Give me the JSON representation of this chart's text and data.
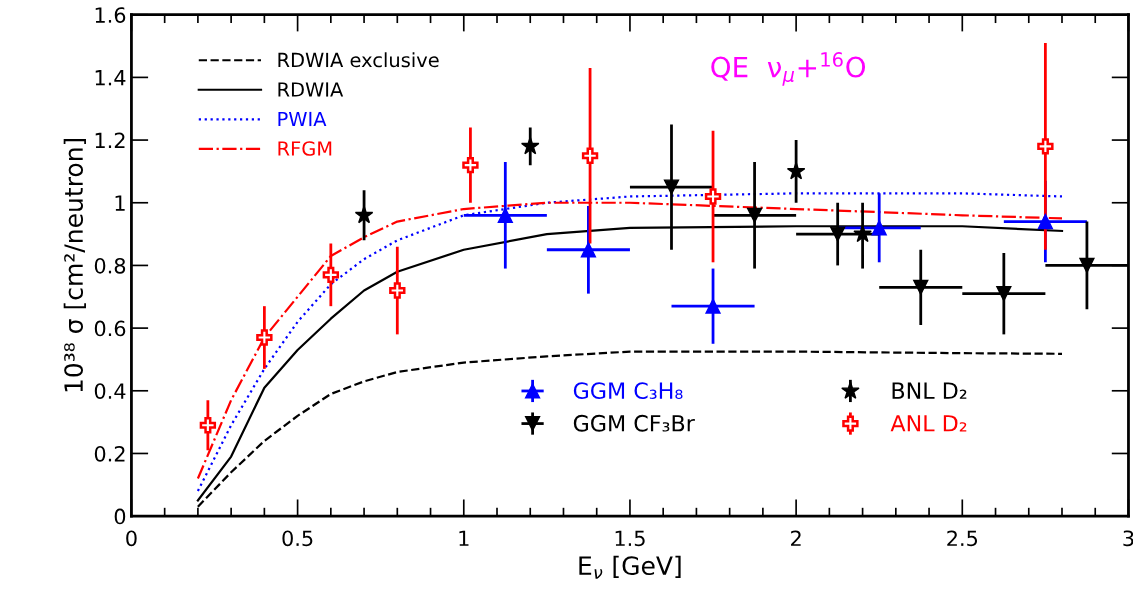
{
  "chart_data": {
    "type": "scatter",
    "xlabel": "E$_{ν}$ [GeV]",
    "ylabel": "10³⁸ σ [cm²/neutron]",
    "annotations": [
      "QE  ν$_{μ}$+$^{16}$O"
    ],
    "xlim": [
      0,
      3
    ],
    "xticks": [
      0,
      0.5,
      1,
      1.5,
      2,
      2.5,
      3
    ],
    "ylim": [
      0,
      1.6
    ],
    "yticks": [
      0,
      0.2,
      0.4,
      0.6,
      0.8,
      1,
      1.2,
      1.4,
      1.6
    ],
    "grid": false,
    "legend": "top left",
    "series": [
      {
        "name": "RDWIA exclusive",
        "type": "line",
        "line_style": "dashed",
        "color": "#000000",
        "x": [
          0.2,
          0.3,
          0.4,
          0.5,
          0.6,
          0.7,
          0.8,
          1.0,
          1.25,
          1.5,
          2.0,
          2.5,
          2.8
        ],
        "values": [
          0.03,
          0.14,
          0.24,
          0.32,
          0.39,
          0.43,
          0.46,
          0.49,
          0.51,
          0.525,
          0.525,
          0.52,
          0.518
        ]
      },
      {
        "name": "RDWIA",
        "type": "line",
        "line_style": "solid",
        "color": "#000000",
        "x": [
          0.2,
          0.3,
          0.4,
          0.5,
          0.6,
          0.7,
          0.8,
          1.0,
          1.25,
          1.5,
          2.0,
          2.5,
          2.8
        ],
        "values": [
          0.05,
          0.19,
          0.41,
          0.53,
          0.63,
          0.72,
          0.78,
          0.85,
          0.9,
          0.92,
          0.925,
          0.925,
          0.91
        ]
      },
      {
        "name": "PWIA",
        "type": "line",
        "line_style": "dotted",
        "color": "#0000ff",
        "x": [
          0.2,
          0.3,
          0.4,
          0.5,
          0.6,
          0.7,
          0.8,
          1.0,
          1.25,
          1.5,
          2.0,
          2.5,
          2.8
        ],
        "values": [
          0.08,
          0.29,
          0.47,
          0.62,
          0.74,
          0.82,
          0.88,
          0.96,
          1.0,
          1.02,
          1.03,
          1.03,
          1.02
        ]
      },
      {
        "name": "RFGM",
        "type": "line",
        "line_style": "dashdot",
        "color": "#ff0000",
        "x": [
          0.2,
          0.3,
          0.4,
          0.5,
          0.6,
          0.7,
          0.8,
          1.0,
          1.25,
          1.5,
          2.0,
          2.5,
          2.8
        ],
        "values": [
          0.12,
          0.37,
          0.57,
          0.7,
          0.83,
          0.89,
          0.94,
          0.98,
          1.0,
          1.0,
          0.98,
          0.96,
          0.95
        ]
      },
      {
        "name": "GGM C₃H₈",
        "marker": "triangle",
        "color": "#0000ff",
        "x": [
          1.125,
          1.375,
          1.75,
          2.25,
          2.75
        ],
        "values": [
          0.96,
          0.85,
          0.67,
          0.92,
          0.94
        ],
        "errors": [
          [
            0.79,
            1.13
          ],
          [
            0.71,
            0.99
          ],
          [
            0.55,
            0.79
          ],
          [
            0.81,
            1.03
          ],
          [
            0.81,
            1.07
          ]
        ],
        "xerrors": [
          [
            1.0,
            1.25
          ],
          [
            1.25,
            1.5
          ],
          [
            1.625,
            1.875
          ],
          [
            2.125,
            2.375
          ],
          [
            2.625,
            2.875
          ]
        ]
      },
      {
        "name": "GGM CF₃Br",
        "marker": "triangle_down",
        "color": "#000000",
        "x": [
          1.625,
          1.875,
          2.125,
          2.375,
          2.625,
          2.875
        ],
        "values": [
          1.05,
          0.96,
          0.9,
          0.73,
          0.71,
          0.8
        ],
        "errors": [
          [
            0.85,
            1.25
          ],
          [
            0.79,
            1.13
          ],
          [
            0.8,
            1.0
          ],
          [
            0.61,
            0.85
          ],
          [
            0.58,
            0.84
          ],
          [
            0.66,
            0.94
          ]
        ],
        "xerrors": [
          [
            1.5,
            1.75
          ],
          [
            1.75,
            2.0
          ],
          [
            2.0,
            2.25
          ],
          [
            2.25,
            2.5
          ],
          [
            2.5,
            2.75
          ],
          [
            2.75,
            3.0
          ]
        ]
      },
      {
        "name": "BNL D₂",
        "marker": "star",
        "color": "#000000",
        "x": [
          0.7,
          1.2,
          2.0,
          2.2
        ],
        "values": [
          0.96,
          1.18,
          1.1,
          0.9
        ],
        "errors": [
          [
            0.88,
            1.04
          ],
          [
            1.12,
            1.24
          ],
          [
            1.0,
            1.2
          ],
          [
            0.79,
            1.0
          ]
        ]
      },
      {
        "name": "ANL D₂",
        "marker": "cross",
        "color": "#ff0000",
        "x": [
          0.23,
          0.4,
          0.6,
          0.8,
          1.02,
          1.38,
          1.75,
          2.75
        ],
        "values": [
          0.29,
          0.57,
          0.77,
          0.72,
          1.12,
          1.15,
          1.02,
          1.18
        ],
        "errors": [
          [
            0.21,
            0.37
          ],
          [
            0.47,
            0.67
          ],
          [
            0.67,
            0.87
          ],
          [
            0.58,
            0.86
          ],
          [
            1.0,
            1.24
          ],
          [
            0.87,
            1.43
          ],
          [
            0.81,
            1.23
          ],
          [
            0.85,
            1.51
          ]
        ]
      }
    ]
  }
}
